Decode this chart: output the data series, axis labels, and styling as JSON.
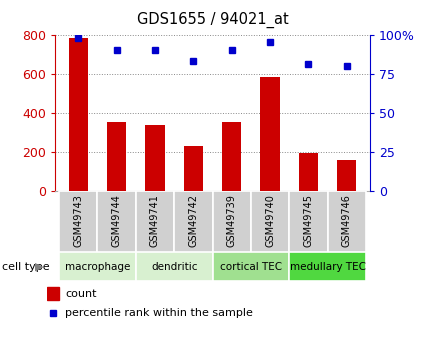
{
  "title": "GDS1655 / 94021_at",
  "samples": [
    "GSM49743",
    "GSM49744",
    "GSM49741",
    "GSM49742",
    "GSM49739",
    "GSM49740",
    "GSM49745",
    "GSM49746"
  ],
  "counts": [
    780,
    355,
    340,
    230,
    355,
    585,
    195,
    160
  ],
  "percentiles": [
    98,
    90,
    90,
    83,
    90,
    95,
    81,
    80
  ],
  "cell_types": [
    {
      "label": "macrophage",
      "start": 0,
      "end": 2,
      "color": "#d8f0d0"
    },
    {
      "label": "dendritic",
      "start": 2,
      "end": 4,
      "color": "#d8f0d0"
    },
    {
      "label": "cortical TEC",
      "start": 4,
      "end": 6,
      "color": "#a0e090"
    },
    {
      "label": "medullary TEC",
      "start": 6,
      "end": 8,
      "color": "#50d840"
    }
  ],
  "bar_color": "#cc0000",
  "dot_color": "#0000cc",
  "left_ylim": [
    0,
    800
  ],
  "right_ylim": [
    0,
    100
  ],
  "left_yticks": [
    0,
    200,
    400,
    600,
    800
  ],
  "right_yticks": [
    0,
    25,
    50,
    75,
    100
  ],
  "right_yticklabels": [
    "0",
    "25",
    "50",
    "75",
    "100%"
  ],
  "grid_color": "#888888",
  "tick_label_color_left": "#cc0000",
  "tick_label_color_right": "#0000cc",
  "legend_count_label": "count",
  "legend_pct_label": "percentile rank within the sample",
  "cell_type_label": "cell type",
  "sample_box_color": "#d0d0d0",
  "bar_width": 0.5
}
